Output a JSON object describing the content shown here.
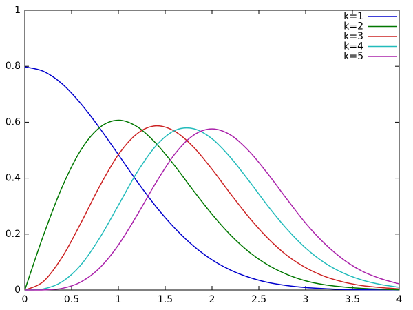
{
  "chart_data": {
    "type": "line",
    "x": [
      0,
      0.2,
      0.4,
      0.6,
      0.8,
      1,
      1.2,
      1.4,
      1.6,
      1.8,
      2,
      2.2,
      2.4,
      2.6,
      2.8,
      3,
      3.2,
      3.4,
      3.6,
      3.8,
      4
    ],
    "series": [
      {
        "name": "k=1",
        "color": "#0000cc",
        "values": [
          0.798,
          0.782,
          0.737,
          0.666,
          0.579,
          0.484,
          0.388,
          0.299,
          0.222,
          0.158,
          0.108,
          0.071,
          0.045,
          0.027,
          0.016,
          0.009,
          0.005,
          0.002,
          0.001,
          0.001,
          0.0003
        ]
      },
      {
        "name": "k=2",
        "color": "#007700",
        "values": [
          0,
          0.196,
          0.369,
          0.501,
          0.581,
          0.607,
          0.584,
          0.525,
          0.445,
          0.356,
          0.271,
          0.196,
          0.135,
          0.089,
          0.056,
          0.033,
          0.019,
          0.011,
          0.006,
          0.003,
          0.001
        ]
      },
      {
        "name": "k=3",
        "color": "#cc2222",
        "values": [
          0,
          0.031,
          0.118,
          0.24,
          0.371,
          0.484,
          0.559,
          0.587,
          0.568,
          0.512,
          0.432,
          0.343,
          0.258,
          0.184,
          0.124,
          0.08,
          0.049,
          0.029,
          0.016,
          0.009,
          0.004
        ]
      },
      {
        "name": "k=4",
        "color": "#22bbbb",
        "values": [
          0,
          0.004,
          0.03,
          0.09,
          0.186,
          0.303,
          0.421,
          0.515,
          0.57,
          0.577,
          0.541,
          0.473,
          0.388,
          0.299,
          0.218,
          0.15,
          0.098,
          0.061,
          0.036,
          0.02,
          0.01
        ]
      },
      {
        "name": "k=5",
        "color": "#aa22aa",
        "values": [
          0,
          0.0004,
          0.006,
          0.029,
          0.079,
          0.161,
          0.268,
          0.383,
          0.485,
          0.553,
          0.576,
          0.554,
          0.495,
          0.414,
          0.325,
          0.239,
          0.167,
          0.11,
          0.068,
          0.041,
          0.022
        ]
      }
    ],
    "xlim": [
      0,
      4
    ],
    "ylim": [
      0,
      1
    ],
    "xticks": [
      0,
      0.5,
      1,
      1.5,
      2,
      2.5,
      3,
      3.5,
      4
    ],
    "yticks": [
      0,
      0.2,
      0.4,
      0.6,
      0.8,
      1
    ],
    "legend": "upper-right"
  }
}
